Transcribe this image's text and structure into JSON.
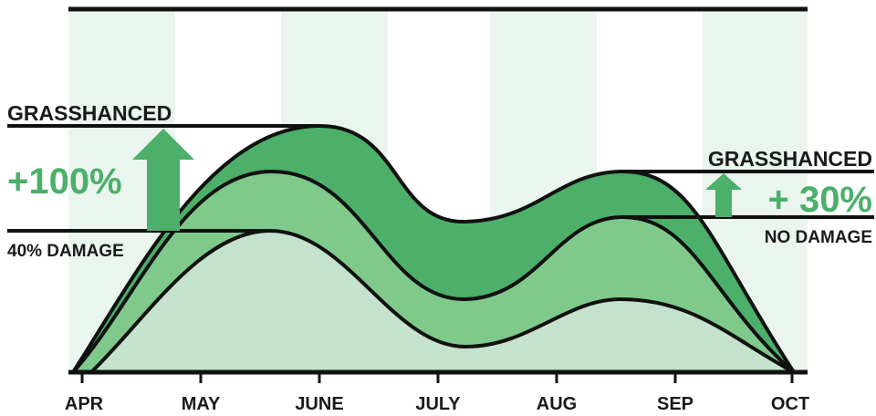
{
  "chart_data": {
    "type": "area",
    "x": [
      "APR",
      "MAY",
      "JUNE",
      "JULY",
      "AUG",
      "SEP",
      "OCT"
    ],
    "series": [
      {
        "color": "#4caf6a"
      },
      {
        "color": "#7fc98b"
      },
      {
        "color": "#c4e2cd"
      }
    ],
    "grid": "alternating vertical bands",
    "band_color": "#eaf5ee",
    "arrow_color": "#4caf6a",
    "annotations": {
      "left": {
        "top_label": "GRASSHANCED",
        "percent": "+100%",
        "bottom_label": "40% DAMAGE"
      },
      "right": {
        "top_label": "GRASSHANCED",
        "percent": "+ 30%",
        "bottom_label": "NO DAMAGE"
      }
    }
  }
}
